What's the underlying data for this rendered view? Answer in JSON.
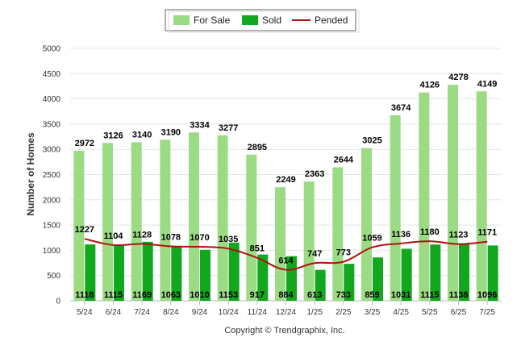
{
  "chart_data": {
    "type": "bar",
    "categories": [
      "5/24",
      "6/24",
      "7/24",
      "8/24",
      "9/24",
      "10/24",
      "11/24",
      "12/24",
      "1/25",
      "2/25",
      "3/25",
      "4/25",
      "5/25",
      "6/25",
      "7/25"
    ],
    "series": [
      {
        "name": "For Sale",
        "type": "bar",
        "color": "#9bdb84",
        "values": [
          2972,
          3126,
          3140,
          3190,
          3334,
          3277,
          2895,
          2249,
          2363,
          2644,
          3025,
          3674,
          4126,
          4278,
          4149
        ]
      },
      {
        "name": "Sold",
        "type": "bar",
        "color": "#11a81d",
        "values": [
          1118,
          1115,
          1169,
          1063,
          1010,
          1153,
          917,
          884,
          613,
          733,
          859,
          1031,
          1115,
          1138,
          1096
        ]
      },
      {
        "name": "Pended",
        "type": "line",
        "color": "#b01010",
        "values": [
          1227,
          1104,
          1128,
          1078,
          1070,
          1035,
          851,
          614,
          747,
          773,
          1059,
          1136,
          1180,
          1123,
          1171
        ]
      }
    ],
    "yticks": [
      "0",
      "500",
      "1000",
      "1500",
      "2000",
      "2500",
      "3000",
      "3500",
      "4000",
      "4500",
      "5000"
    ],
    "ylabel": "Number of Homes",
    "ylim": [
      0,
      5000
    ],
    "grid": true,
    "legend_position": "top-center"
  },
  "footer": {
    "copyright": "Copyright © Trendgraphix, Inc."
  }
}
